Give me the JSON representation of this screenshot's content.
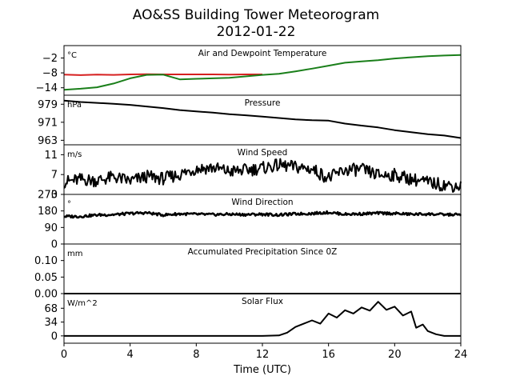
{
  "title": "AO&SS Building Tower Meteorogram",
  "subtitle": "2012-01-22",
  "chart_data": {
    "type": "line",
    "xlabel": "Time (UTC)",
    "xlim": [
      0,
      24
    ],
    "xticks": [
      0,
      4,
      8,
      12,
      16,
      20,
      24
    ],
    "panels": [
      {
        "title": "Air and Dewpoint Temperature",
        "unit": "°C",
        "ylim": [
          -17,
          3
        ],
        "yticks": [
          -2,
          -8,
          -14
        ],
        "series": [
          {
            "color": "#d62020",
            "x": [
              0,
              1,
              2,
              3,
              4,
              5,
              6,
              7,
              8,
              9,
              10,
              11,
              12
            ],
            "y": [
              -8.7,
              -8.9,
              -8.7,
              -8.8,
              -8.6,
              -8.5,
              -8.6,
              -8.6,
              -8.6,
              -8.6,
              -8.7,
              -8.6,
              -8.6
            ]
          },
          {
            "color": "#1a7f1a",
            "x": [
              0,
              1,
              2,
              3,
              4,
              5,
              6,
              7,
              8,
              10,
              12,
              13,
              14,
              15,
              16,
              17,
              18,
              19,
              20,
              21,
              22,
              23,
              24
            ],
            "y": [
              -14.8,
              -14.4,
              -13.8,
              -12.3,
              -10.2,
              -8.8,
              -8.7,
              -10.6,
              -10.4,
              -10.0,
              -8.8,
              -8.4,
              -7.4,
              -6.3,
              -5.1,
              -3.9,
              -3.4,
              -2.9,
              -2.2,
              -1.7,
              -1.3,
              -1.0,
              -0.8
            ]
          }
        ]
      },
      {
        "title": "Pressure",
        "unit": "hPa",
        "ylim": [
          961,
          983
        ],
        "yticks": [
          979,
          971,
          963
        ],
        "series": [
          {
            "color": "#000000",
            "x": [
              0,
              1,
              2,
              3,
              4,
              5,
              6,
              7,
              8,
              9,
              10,
              11,
              12,
              13,
              14,
              15,
              16,
              17,
              18,
              19,
              20,
              21,
              22,
              23,
              24
            ],
            "y": [
              980.6,
              980.0,
              979.6,
              979.2,
              978.7,
              978.0,
              977.3,
              976.4,
              975.8,
              975.3,
              974.6,
              974.1,
              973.5,
              972.9,
              972.3,
              971.9,
              971.7,
              970.4,
              969.5,
              968.7,
              967.5,
              966.6,
              965.7,
              965.1,
              964.0
            ]
          }
        ]
      },
      {
        "title": "Wind Speed",
        "unit": "m/s",
        "ylim": [
          3,
          13
        ],
        "yticks": [
          11,
          7,
          3
        ],
        "series": [
          {
            "color": "#000000",
            "x": [
              0,
              1,
              2,
              3,
              4,
              5,
              6,
              7,
              8,
              9,
              10,
              11,
              12,
              13,
              14,
              15,
              16,
              17,
              18,
              19,
              20,
              21,
              22,
              23,
              24
            ],
            "y": [
              5.5,
              6.0,
              5.8,
              6.5,
              5.7,
              6.6,
              6.2,
              7.0,
              8.2,
              8.4,
              7.6,
              7.9,
              8.3,
              8.9,
              8.5,
              8.1,
              6.3,
              7.9,
              8.0,
              6.9,
              6.9,
              6.1,
              5.4,
              4.9,
              4.6
            ]
          }
        ]
      },
      {
        "title": "Wind Direction",
        "unit": "°",
        "ylim": [
          0,
          270
        ],
        "yticks": [
          270,
          180,
          90,
          0
        ],
        "series": [
          {
            "color": "#000000",
            "x": [
              0,
              1,
              2,
              3,
              4,
              5,
              6,
              7,
              8,
              9,
              10,
              11,
              12,
              13,
              14,
              15,
              16,
              17,
              18,
              19,
              20,
              21,
              22,
              23,
              24
            ],
            "y": [
              150,
              150,
              158,
              160,
              166,
              170,
              158,
              164,
              162,
              160,
              162,
              160,
              162,
              158,
              164,
              166,
              172,
              162,
              164,
              168,
              166,
              162,
              163,
              160,
              160
            ]
          }
        ]
      },
      {
        "title": "Accumulated Precipitation Since 0Z",
        "unit": "mm",
        "ylim": [
          0,
          0.15
        ],
        "yticks": [
          0.1,
          0.05,
          0.0
        ],
        "series": [
          {
            "color": "#000000",
            "x": [
              0,
              24
            ],
            "y": [
              0,
              0
            ]
          }
        ]
      },
      {
        "title": "Solar Flux",
        "unit": "W/m^2",
        "ylim": [
          -18,
          104
        ],
        "yticks": [
          68,
          34,
          0
        ],
        "series": [
          {
            "color": "#000000",
            "x": [
              0,
              12,
              13,
              13.5,
              14,
              14.5,
              15,
              15.5,
              16,
              16.5,
              17,
              17.5,
              18,
              18.5,
              19,
              19.5,
              20,
              20.5,
              21,
              21.3,
              21.7,
              22,
              22.5,
              23,
              24
            ],
            "y": [
              0,
              0,
              1,
              8,
              22,
              30,
              38,
              30,
              55,
              45,
              63,
              55,
              70,
              62,
              84,
              64,
              72,
              50,
              60,
              20,
              28,
              12,
              4,
              0,
              0
            ]
          }
        ]
      }
    ]
  }
}
